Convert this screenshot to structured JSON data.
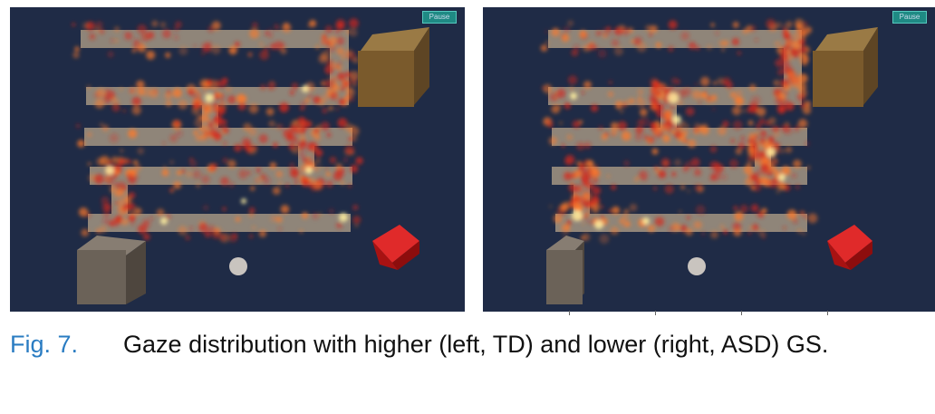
{
  "figure": {
    "panels": [
      {
        "side": "left",
        "group": "TD",
        "button_label": "Pause"
      },
      {
        "side": "right",
        "group": "ASD",
        "button_label": "Pause"
      }
    ],
    "caption": {
      "label": "Fig. 7.",
      "text": "Gaze distribution with higher (left, TD) and lower (right, ASD) GS."
    }
  },
  "colors": {
    "scene_background": "#1f2b46",
    "maze_path": "#9c8f7f",
    "gaze_heat": "#ff7a2a",
    "gaze_hotspot": "#fff0a0",
    "crate": "#7a5a2c",
    "red_cube": "#c01515",
    "grey_cube": "#6b6258",
    "caption_label": "#2a7cc2"
  }
}
